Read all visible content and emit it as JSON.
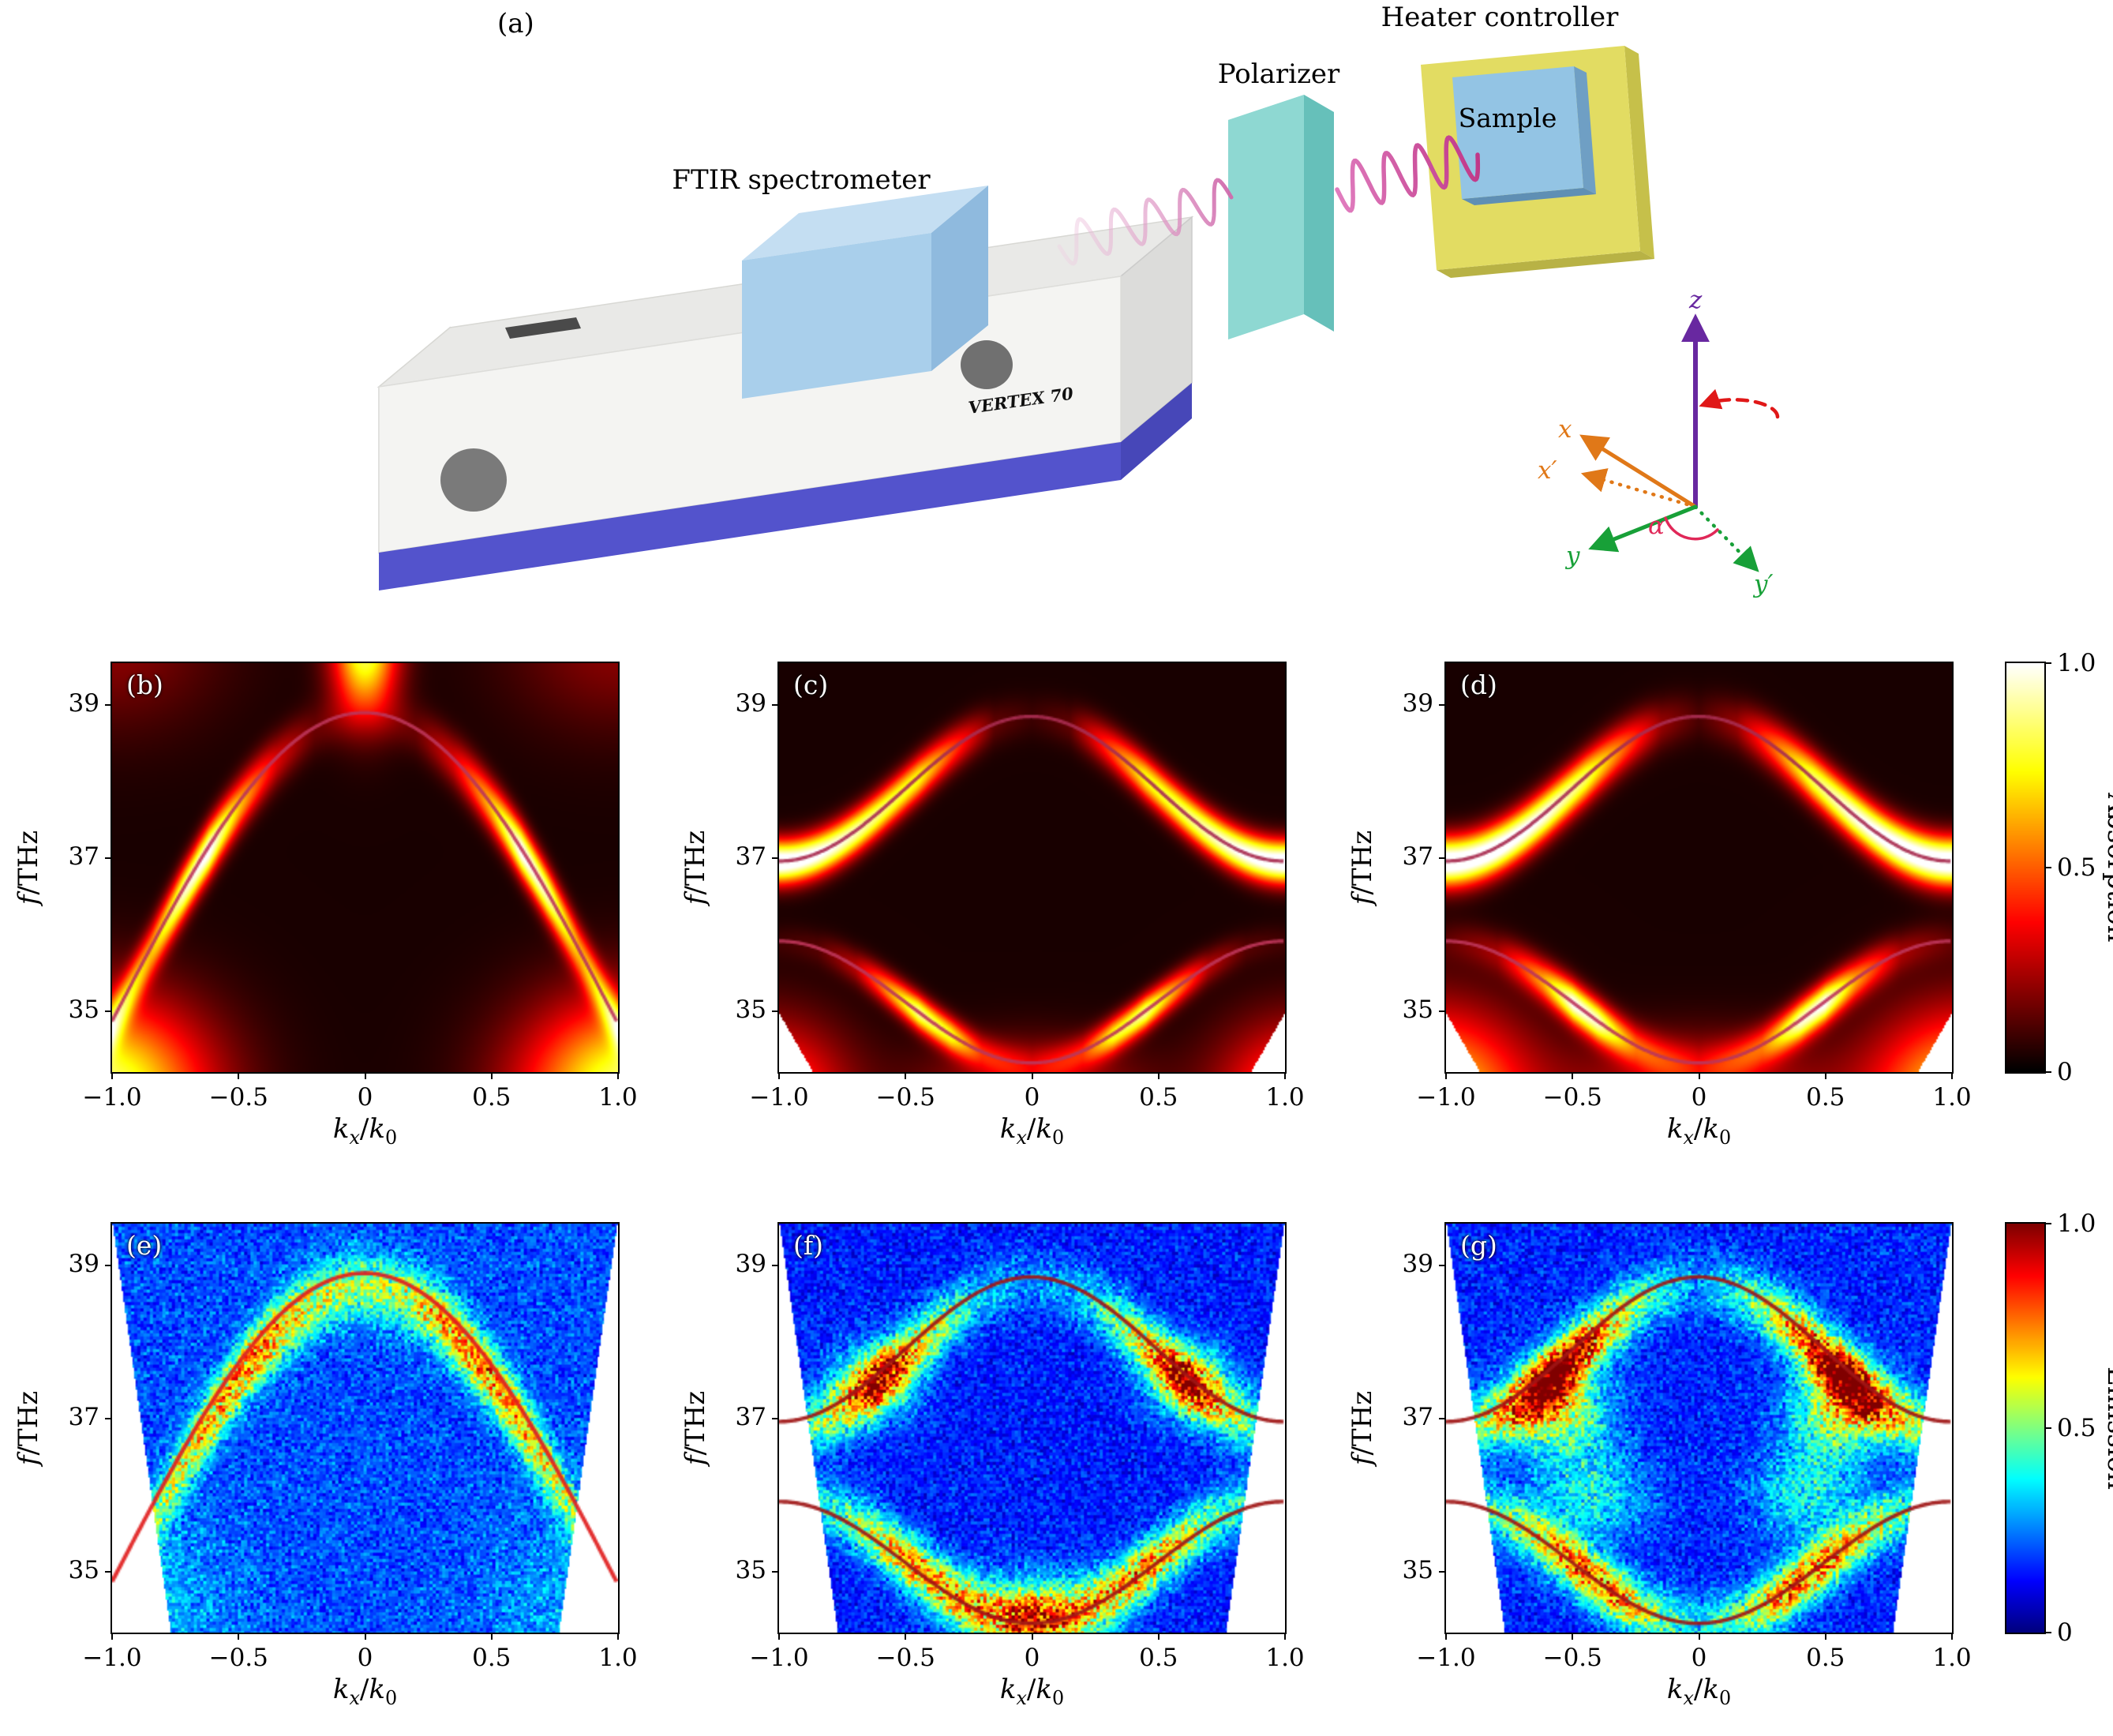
{
  "panel_a": {
    "label": "(a)",
    "ftir_label": "FTIR spectrometer",
    "polarizer_label": "Polarizer",
    "heater_label": "Heater controller",
    "sample_label": "Sample",
    "device_text": "VERTEX 70",
    "axes": {
      "x": "x",
      "x_prime": "x′",
      "y": "y",
      "y_prime": "y′",
      "z": "z",
      "alpha": "α"
    },
    "colors": {
      "x_axis": "#e07818",
      "y_axis": "#18a038",
      "z_axis": "#6828a0",
      "alpha": "#e02858",
      "rotation_arrow": "#e01818",
      "spectrometer_base": "#5353cc",
      "spectrometer_body": "#f4f4f2",
      "spectrometer_window": "#a9cfeb",
      "polarizer": "#8ed8d2",
      "heater": "#e2dc62",
      "sample": "#93c4e4",
      "beam": "#d8509c"
    }
  },
  "chart_data": [
    {
      "id": "b",
      "label": "(b)",
      "type": "heatmap",
      "colormap": "hot",
      "row": "absorption",
      "xlabel": "$k_x/k_0$",
      "ylabel": "$f$/THz",
      "xlim": [
        -1,
        1
      ],
      "ylim": [
        34.2,
        39.55
      ],
      "xticks": {
        "values": [
          -1,
          -0.5,
          0,
          0.5,
          1
        ],
        "labels": [
          "−1.0",
          "−0.5",
          "0",
          "0.5",
          "1.0"
        ]
      },
      "yticks": {
        "values": [
          35,
          37,
          39
        ],
        "labels": [
          "35",
          "37",
          "39"
        ]
      },
      "dispersion_curves": [
        {
          "base": 34.85,
          "amp": 4.05,
          "mode": 0.5,
          "color": "#bd3559",
          "width": 2.2
        }
      ],
      "bands": [
        {
          "curve": 0,
          "sigma": 0.24,
          "offset": -0.03,
          "profile": [
            [
              0,
              0.05
            ],
            [
              0.2,
              0.1
            ],
            [
              0.35,
              0.28
            ],
            [
              0.5,
              0.62
            ],
            [
              0.62,
              1.0
            ],
            [
              0.72,
              0.9
            ],
            [
              0.85,
              0.55
            ],
            [
              1,
              0.5
            ]
          ]
        }
      ],
      "blobs": [
        {
          "k": 0,
          "f": 39.75,
          "sk": 0.09,
          "sf": 0.6,
          "amp": 0.8,
          "mirror": false
        },
        {
          "k": 1.06,
          "f": 33.9,
          "sk": 0.3,
          "sf": 0.85,
          "amp": 0.85,
          "mirror": true
        },
        {
          "k": 1.0,
          "f": 39.8,
          "sk": 0.3,
          "sf": 0.8,
          "amp": 0.16,
          "mirror": true
        }
      ],
      "background": 0.035,
      "noise": null,
      "mask": null
    },
    {
      "id": "c",
      "label": "(c)",
      "type": "heatmap",
      "colormap": "hot",
      "row": "absorption",
      "xlabel": "$k_x/k_0$",
      "ylabel": "$f$/THz",
      "xlim": [
        -1,
        1
      ],
      "ylim": [
        34.2,
        39.55
      ],
      "xticks": {
        "values": [
          -1,
          -0.5,
          0,
          0.5,
          1
        ],
        "labels": [
          "−1.0",
          "−0.5",
          "0",
          "0.5",
          "1.0"
        ]
      },
      "yticks": {
        "values": [
          35,
          37,
          39
        ],
        "labels": [
          "35",
          "37",
          "39"
        ]
      },
      "dispersion_curves": [
        {
          "base": 37.9,
          "amp": 0.95,
          "mode": 1,
          "color": "#a82c50",
          "width": 2.2
        },
        {
          "base": 35.1,
          "amp": -0.8,
          "mode": 1,
          "color": "#bd3559",
          "width": 2.2
        }
      ],
      "bands": [
        {
          "curve": 0,
          "sigma": 0.2,
          "offset": 0,
          "profile": [
            [
              0,
              0.05
            ],
            [
              0.15,
              0.1
            ],
            [
              0.3,
              0.4
            ],
            [
              0.45,
              0.72
            ],
            [
              0.55,
              0.78
            ],
            [
              0.7,
              0.9
            ],
            [
              0.85,
              1.0
            ],
            [
              1,
              1.08
            ]
          ]
        },
        {
          "curve": 1,
          "sigma": 0.16,
          "offset": 0,
          "profile": [
            [
              0,
              0.1
            ],
            [
              0.2,
              0.28
            ],
            [
              0.32,
              0.7
            ],
            [
              0.45,
              0.85
            ],
            [
              0.55,
              0.6
            ],
            [
              0.7,
              0.22
            ],
            [
              0.85,
              0.08
            ],
            [
              1,
              0.05
            ]
          ]
        }
      ],
      "blobs": [
        {
          "k": 1.05,
          "f": 33.85,
          "sk": 0.22,
          "sf": 0.7,
          "amp": 0.5,
          "mirror": true
        },
        {
          "k": 0,
          "f": 33.95,
          "sk": 0.3,
          "sf": 0.45,
          "amp": 0.28,
          "mirror": false
        }
      ],
      "background": 0.035,
      "noise": null,
      "mask": {
        "type": "corner",
        "k0": 0.87,
        "f1": 34.95
      }
    },
    {
      "id": "d",
      "label": "(d)",
      "type": "heatmap",
      "colormap": "hot",
      "row": "absorption",
      "xlabel": "$k_x/k_0$",
      "ylabel": "$f$/THz",
      "xlim": [
        -1,
        1
      ],
      "ylim": [
        34.2,
        39.55
      ],
      "xticks": {
        "values": [
          -1,
          -0.5,
          0,
          0.5,
          1
        ],
        "labels": [
          "−1.0",
          "−0.5",
          "0",
          "0.5",
          "1.0"
        ]
      },
      "yticks": {
        "values": [
          35,
          37,
          39
        ],
        "labels": [
          "35",
          "37",
          "39"
        ]
      },
      "dispersion_curves": [
        {
          "base": 37.9,
          "amp": 0.95,
          "mode": 1,
          "color": "#a82c50",
          "width": 2.2
        },
        {
          "base": 35.1,
          "amp": -0.8,
          "mode": 1,
          "color": "#bd3559",
          "width": 2.2
        }
      ],
      "bands": [
        {
          "curve": 0,
          "sigma": 0.23,
          "offset": 0,
          "profile": [
            [
              0,
              0.07
            ],
            [
              0.15,
              0.18
            ],
            [
              0.3,
              0.48
            ],
            [
              0.45,
              0.8
            ],
            [
              0.6,
              0.95
            ],
            [
              0.8,
              1.05
            ],
            [
              1,
              1.08
            ]
          ]
        },
        {
          "curve": 1,
          "sigma": 0.19,
          "offset": 0,
          "profile": [
            [
              0,
              0.1
            ],
            [
              0.25,
              0.38
            ],
            [
              0.4,
              0.88
            ],
            [
              0.5,
              0.95
            ],
            [
              0.62,
              0.55
            ],
            [
              0.8,
              0.18
            ],
            [
              1,
              0.08
            ]
          ]
        }
      ],
      "blobs": [
        {
          "k": 1.05,
          "f": 33.85,
          "sk": 0.26,
          "sf": 0.8,
          "amp": 0.7,
          "mirror": true
        },
        {
          "k": 0,
          "f": 33.95,
          "sk": 0.35,
          "sf": 0.5,
          "amp": 0.3,
          "mirror": false
        }
      ],
      "background": 0.035,
      "noise": null,
      "mask": {
        "type": "corner",
        "k0": 0.87,
        "f1": 34.95
      }
    },
    {
      "id": "e",
      "label": "(e)",
      "type": "heatmap",
      "colormap": "jet",
      "row": "emission",
      "xlabel": "$k_x/k_0$",
      "ylabel": "$f$/THz",
      "xlim": [
        -1,
        1
      ],
      "ylim": [
        34.2,
        39.55
      ],
      "xticks": {
        "values": [
          -1,
          -0.5,
          0,
          0.5,
          1
        ],
        "labels": [
          "−1.0",
          "−0.5",
          "0",
          "0.5",
          "1.0"
        ]
      },
      "yticks": {
        "values": [
          35,
          37,
          39
        ],
        "labels": [
          "35",
          "37",
          "39"
        ]
      },
      "dispersion_curves": [
        {
          "base": 34.85,
          "amp": 4.05,
          "mode": 0.5,
          "color": "#e11e1e",
          "width": 2.6
        }
      ],
      "bands": [
        {
          "curve": 0,
          "sigma": 0.3,
          "offset": -0.18,
          "profile": [
            [
              0,
              0.32
            ],
            [
              0.15,
              0.36
            ],
            [
              0.3,
              0.48
            ],
            [
              0.45,
              0.56
            ],
            [
              0.6,
              0.5
            ],
            [
              0.75,
              0.36
            ],
            [
              0.9,
              0.2
            ],
            [
              1,
              0.12
            ]
          ]
        }
      ],
      "blobs": [
        {
          "k": 0.95,
          "f": 34.6,
          "sk": 0.3,
          "sf": 0.8,
          "amp": 0.12,
          "mirror": true
        }
      ],
      "background": 0.2,
      "noise": {
        "mult": 0.55,
        "add": 0.13
      },
      "mask": {
        "type": "trap",
        "kbot": 0.77,
        "ktop": 1.0
      }
    },
    {
      "id": "f",
      "label": "(f)",
      "type": "heatmap",
      "colormap": "jet",
      "row": "emission",
      "xlabel": "$k_x/k_0$",
      "ylabel": "$f$/THz",
      "xlim": [
        -1,
        1
      ],
      "ylim": [
        34.2,
        39.55
      ],
      "xticks": {
        "values": [
          -1,
          -0.5,
          0,
          0.5,
          1
        ],
        "labels": [
          "−1.0",
          "−0.5",
          "0",
          "0.5",
          "1.0"
        ]
      },
      "yticks": {
        "values": [
          35,
          37,
          39
        ],
        "labels": [
          "35",
          "37",
          "39"
        ]
      },
      "dispersion_curves": [
        {
          "base": 37.9,
          "amp": 0.95,
          "mode": 1,
          "color": "#a01616",
          "width": 2.4
        },
        {
          "base": 35.1,
          "amp": -0.8,
          "mode": 1,
          "color": "#a01616",
          "width": 2.4
        }
      ],
      "bands": [
        {
          "curve": 0,
          "sigma": 0.28,
          "offset": -0.08,
          "profile": [
            [
              0,
              0.1
            ],
            [
              0.2,
              0.18
            ],
            [
              0.35,
              0.36
            ],
            [
              0.5,
              0.52
            ],
            [
              0.62,
              0.6
            ],
            [
              0.75,
              0.42
            ],
            [
              0.9,
              0.28
            ],
            [
              1,
              0.22
            ]
          ]
        },
        {
          "curve": 1,
          "sigma": 0.26,
          "offset": 0.05,
          "profile": [
            [
              0,
              0.48
            ],
            [
              0.15,
              0.4
            ],
            [
              0.3,
              0.48
            ],
            [
              0.45,
              0.6
            ],
            [
              0.6,
              0.48
            ],
            [
              0.75,
              0.28
            ],
            [
              1,
              0.16
            ]
          ]
        }
      ],
      "blobs": [
        {
          "k": 0,
          "f": 34.4,
          "sk": 0.2,
          "sf": 0.4,
          "amp": 0.3,
          "mirror": false
        },
        {
          "k": 0.62,
          "f": 37.5,
          "sk": 0.12,
          "sf": 0.35,
          "amp": 0.28,
          "mirror": true
        }
      ],
      "background": 0.15,
      "noise": {
        "mult": 0.55,
        "add": 0.13
      },
      "mask": {
        "type": "trap",
        "kbot": 0.77,
        "ktop": 1.0
      }
    },
    {
      "id": "g",
      "label": "(g)",
      "type": "heatmap",
      "colormap": "jet",
      "row": "emission",
      "xlabel": "$k_x/k_0$",
      "ylabel": "$f$/THz",
      "xlim": [
        -1,
        1
      ],
      "ylim": [
        34.2,
        39.55
      ],
      "xticks": {
        "values": [
          -1,
          -0.5,
          0,
          0.5,
          1
        ],
        "labels": [
          "−1.0",
          "−0.5",
          "0",
          "0.5",
          "1.0"
        ]
      },
      "yticks": {
        "values": [
          35,
          37,
          39
        ],
        "labels": [
          "35",
          "37",
          "39"
        ]
      },
      "dispersion_curves": [
        {
          "base": 37.9,
          "amp": 0.95,
          "mode": 1,
          "color": "#a01616",
          "width": 2.4
        },
        {
          "base": 35.1,
          "amp": -0.8,
          "mode": 1,
          "color": "#a01616",
          "width": 2.4
        }
      ],
      "bands": [
        {
          "curve": 0,
          "sigma": 0.28,
          "offset": -0.1,
          "profile": [
            [
              0,
              0.1
            ],
            [
              0.2,
              0.28
            ],
            [
              0.35,
              0.52
            ],
            [
              0.5,
              0.78
            ],
            [
              0.62,
              0.82
            ],
            [
              0.75,
              0.5
            ],
            [
              0.9,
              0.32
            ],
            [
              1,
              0.26
            ]
          ]
        },
        {
          "curve": 1,
          "sigma": 0.26,
          "offset": 0,
          "profile": [
            [
              0,
              0.18
            ],
            [
              0.2,
              0.38
            ],
            [
              0.35,
              0.62
            ],
            [
              0.5,
              0.58
            ],
            [
              0.65,
              0.42
            ],
            [
              0.8,
              0.28
            ],
            [
              1,
              0.18
            ]
          ]
        }
      ],
      "blobs": [
        {
          "k": 0.55,
          "f": 37.1,
          "sk": 0.13,
          "sf": 0.42,
          "amp": 0.42,
          "mirror": true
        },
        {
          "k": 0.42,
          "f": 36.0,
          "sk": 0.15,
          "sf": 0.4,
          "amp": 0.22,
          "mirror": true
        }
      ],
      "background": 0.16,
      "noise": {
        "mult": 0.55,
        "add": 0.13
      },
      "mask": {
        "type": "trap",
        "kbot": 0.77,
        "ktop": 1.0
      }
    }
  ],
  "colorbars": [
    {
      "id": "absorption",
      "label": "Absorption",
      "colormap": "hot",
      "ticks": {
        "values": [
          1,
          0.5,
          0
        ],
        "labels": [
          "1.0",
          "0.5",
          "0"
        ]
      }
    },
    {
      "id": "emission",
      "label": "Emission",
      "colormap": "jet",
      "ticks": {
        "values": [
          1,
          0.5,
          0
        ],
        "labels": [
          "1.0",
          "0.5",
          "0"
        ]
      }
    }
  ]
}
